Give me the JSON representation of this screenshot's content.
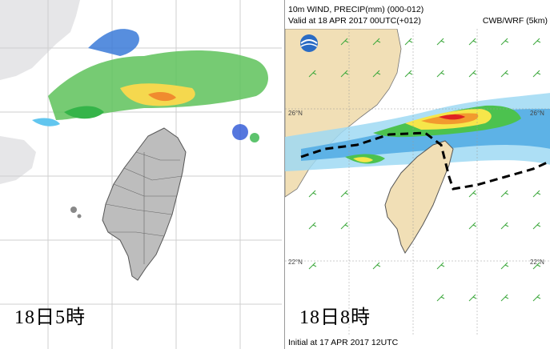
{
  "left_panel": {
    "time_label": "18日5時"
  },
  "right_panel": {
    "title": "10m WIND, PRECIP(mm) (000-012)",
    "valid_line": "Valid at 18 APR 2017 00UTC(+012)",
    "model_label": "CWB/WRF (5km)",
    "initial_line": "Initial at 17 APR 2017 12UTC",
    "time_label": "18日8時",
    "lat_labels": [
      "26°N",
      "26°N",
      "22°N",
      "22°N"
    ]
  },
  "colors": {
    "land": "#f1dfb6",
    "sea": "#ffffff",
    "radar_green": "#35b449",
    "radar_blue": "#2a55d6",
    "precip_red": "#e02222",
    "precip_orange": "#f29a2e",
    "precip_yellow": "#f6e64a",
    "precip_cyan": "#7fd7f2",
    "front_line": "#000000",
    "wind_barb": "#3ca83c"
  }
}
